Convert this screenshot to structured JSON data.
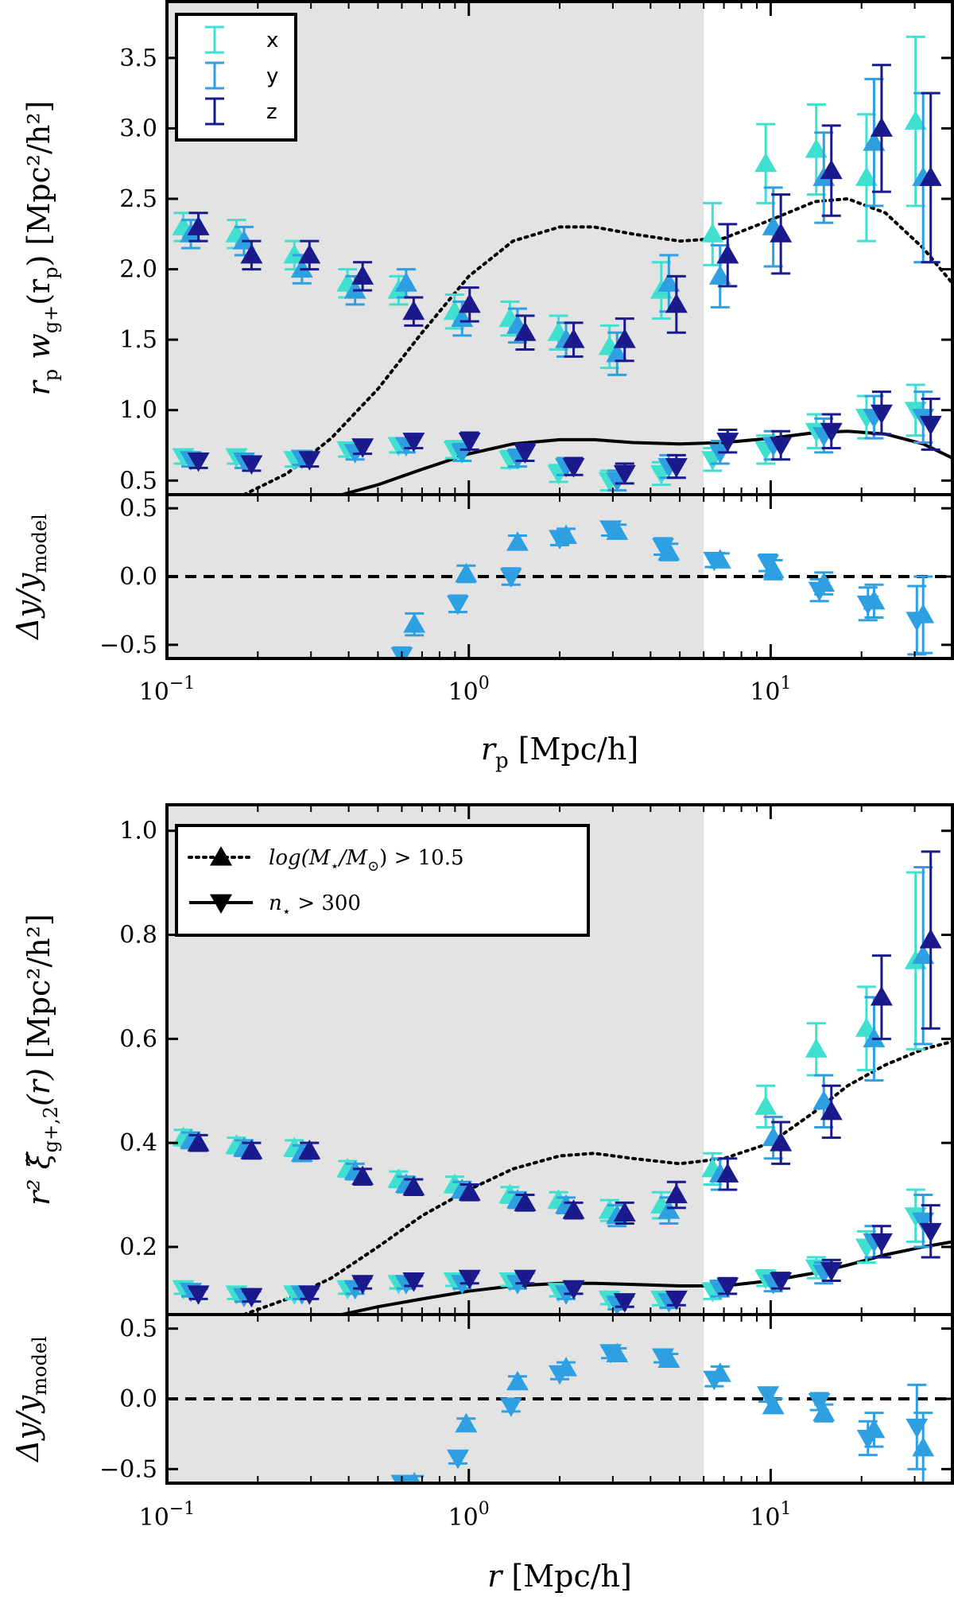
{
  "colors": {
    "x": "#40e0d0",
    "y": "#2e9fe0",
    "z": "#1a1a8c",
    "shade": "#e3e3e3",
    "model": "#000000"
  },
  "chart_data": [
    {
      "id": "top",
      "type": "scatter",
      "xscale": "log",
      "xlim": [
        0.1,
        40
      ],
      "main_ylim": [
        0.4,
        3.9
      ],
      "resid_ylim": [
        -0.6,
        0.6
      ],
      "shaded_xmax": 6,
      "main_yticks": [
        "0.5",
        "1.0",
        "1.5",
        "2.0",
        "2.5",
        "3.0",
        "3.5"
      ],
      "resid_yticks": [
        "−0.5",
        "0.0",
        "0.5"
      ],
      "xticks": [
        {
          "base": "10",
          "exp": "−1"
        },
        {
          "base": "10",
          "exp": "0"
        },
        {
          "base": "10",
          "exp": "1"
        }
      ],
      "xlabel": {
        "main": "r",
        "sub": "p",
        "rest": " [Mpc/h]"
      },
      "ylabel_main": {
        "pre": "r",
        "sub1": "p",
        "mid": " w",
        "sub2": "g+",
        "post": "(r",
        "sub3": "p",
        "end": ") [Mpc²/h²]"
      },
      "ylabel_resid": {
        "pre": "Δy/y",
        "sub": "model"
      },
      "legend": [
        "x",
        "y",
        "z"
      ],
      "x": [
        0.12,
        0.18,
        0.28,
        0.42,
        0.62,
        0.95,
        1.45,
        2.1,
        3.1,
        4.6,
        6.8,
        10.2,
        15.0,
        22.0,
        32.0
      ],
      "series_up": {
        "x": [
          2.3,
          2.25,
          2.1,
          1.9,
          1.85,
          1.7,
          1.65,
          1.55,
          1.45,
          1.85,
          2.25,
          2.75,
          2.85,
          2.65,
          3.05
        ],
        "y": [
          2.25,
          2.2,
          2.0,
          1.85,
          1.9,
          1.65,
          1.6,
          1.5,
          1.4,
          1.9,
          1.95,
          2.3,
          2.65,
          2.9,
          2.65
        ],
        "z": [
          2.3,
          2.1,
          2.1,
          1.95,
          1.7,
          1.75,
          1.55,
          1.5,
          1.5,
          1.75,
          2.1,
          2.25,
          2.7,
          3.0,
          2.65
        ]
      },
      "errors_up": [
        0.1,
        0.1,
        0.1,
        0.1,
        0.1,
        0.12,
        0.12,
        0.12,
        0.15,
        0.2,
        0.22,
        0.28,
        0.32,
        0.45,
        0.6
      ],
      "series_down": {
        "x": [
          0.67,
          0.67,
          0.65,
          0.72,
          0.75,
          0.72,
          0.65,
          0.55,
          0.5,
          0.55,
          0.65,
          0.72,
          0.85,
          0.95,
          1.0
        ],
        "y": [
          0.65,
          0.64,
          0.66,
          0.7,
          0.75,
          0.7,
          0.66,
          0.6,
          0.5,
          0.6,
          0.7,
          0.75,
          0.82,
          0.95,
          0.95
        ],
        "z": [
          0.64,
          0.62,
          0.65,
          0.74,
          0.78,
          0.78,
          0.7,
          0.6,
          0.55,
          0.6,
          0.78,
          0.75,
          0.85,
          0.98,
          0.9
        ]
      },
      "errors_down": [
        0.05,
        0.05,
        0.05,
        0.05,
        0.05,
        0.06,
        0.06,
        0.06,
        0.07,
        0.08,
        0.08,
        0.1,
        0.12,
        0.15,
        0.18
      ],
      "model_dotted": {
        "x": [
          0.18,
          0.25,
          0.35,
          0.5,
          0.7,
          1.0,
          1.4,
          2.0,
          2.6,
          3.5,
          5.0,
          7.0,
          10.0,
          14.0,
          18.0,
          24.0,
          32.0,
          40.0
        ],
        "y": [
          0.4,
          0.55,
          0.8,
          1.15,
          1.55,
          1.95,
          2.2,
          2.3,
          2.3,
          2.25,
          2.2,
          2.22,
          2.35,
          2.48,
          2.5,
          2.4,
          2.15,
          1.9
        ]
      },
      "model_solid": {
        "x": [
          0.38,
          0.5,
          0.7,
          1.0,
          1.4,
          2.0,
          2.6,
          3.5,
          5.0,
          7.0,
          10.0,
          14.0,
          18.0,
          24.0,
          32.0,
          40.0
        ],
        "y": [
          0.4,
          0.47,
          0.58,
          0.69,
          0.76,
          0.79,
          0.79,
          0.77,
          0.76,
          0.77,
          0.8,
          0.84,
          0.85,
          0.83,
          0.76,
          0.66
        ]
      },
      "resid_up": {
        "x": [
          0.66,
          0.98,
          1.45,
          2.1,
          3.1,
          4.6,
          6.8,
          10.2,
          15.0,
          22.0,
          32.0
        ],
        "y": [
          -0.35,
          0.02,
          0.25,
          0.3,
          0.33,
          0.18,
          0.12,
          0.05,
          -0.05,
          -0.18,
          -0.28
        ],
        "err": [
          0.08,
          0.06,
          0.05,
          0.05,
          0.05,
          0.06,
          0.05,
          0.07,
          0.08,
          0.12,
          0.28
        ]
      },
      "resid_down": {
        "x": [
          0.6,
          0.92,
          1.38,
          2.0,
          2.95,
          4.4,
          6.5,
          9.8,
          14.5,
          21.0,
          30.5
        ],
        "y": [
          -0.58,
          -0.2,
          0.0,
          0.28,
          0.35,
          0.22,
          0.12,
          0.1,
          -0.1,
          -0.2,
          -0.32
        ],
        "err": [
          0.06,
          0.06,
          0.06,
          0.05,
          0.05,
          0.06,
          0.05,
          0.06,
          0.08,
          0.12,
          0.25
        ]
      }
    },
    {
      "id": "bottom",
      "type": "scatter",
      "xscale": "log",
      "xlim": [
        0.1,
        40
      ],
      "main_ylim": [
        0.07,
        1.05
      ],
      "resid_ylim": [
        -0.6,
        0.6
      ],
      "shaded_xmax": 6,
      "main_yticks": [
        "0.2",
        "0.4",
        "0.6",
        "0.8",
        "1.0"
      ],
      "resid_yticks": [
        "−0.5",
        "0.0",
        "0.5"
      ],
      "xticks": [
        {
          "base": "10",
          "exp": "−1"
        },
        {
          "base": "10",
          "exp": "0"
        },
        {
          "base": "10",
          "exp": "1"
        }
      ],
      "xlabel": {
        "main": "r",
        "sub": "",
        "rest": " [Mpc/h]"
      },
      "ylabel_main": {
        "pre": "r² ξ̃",
        "sub1": "g+,2",
        "mid": "(r)",
        "sub2": "",
        "post": "",
        "sub3": "",
        "end": " [Mpc²/h²]"
      },
      "ylabel_resid": {
        "pre": "Δy/y",
        "sub": "model"
      },
      "legend_models": [
        {
          "marker": "up",
          "line": "dotted",
          "text_pre": "log(M",
          "text_sub": "⋆",
          "text_mid": "/M",
          "text_sub2": "⊙",
          "text_post": ") > 10.5"
        },
        {
          "marker": "down",
          "line": "solid",
          "text_pre": "n",
          "text_sub": "⋆",
          "text_mid": " > 300",
          "text_sub2": "",
          "text_post": ""
        }
      ],
      "x": [
        0.12,
        0.18,
        0.28,
        0.42,
        0.62,
        0.95,
        1.45,
        2.1,
        3.1,
        4.6,
        6.8,
        10.2,
        15.0,
        22.0,
        32.0
      ],
      "series_up": {
        "x": [
          0.41,
          0.395,
          0.39,
          0.35,
          0.33,
          0.32,
          0.3,
          0.29,
          0.27,
          0.28,
          0.35,
          0.47,
          0.58,
          0.62,
          0.75
        ],
        "y": [
          0.405,
          0.39,
          0.38,
          0.345,
          0.32,
          0.31,
          0.29,
          0.28,
          0.26,
          0.27,
          0.34,
          0.41,
          0.48,
          0.6,
          0.76
        ],
        "z": [
          0.4,
          0.385,
          0.385,
          0.335,
          0.315,
          0.305,
          0.285,
          0.27,
          0.265,
          0.3,
          0.34,
          0.4,
          0.46,
          0.68,
          0.79
        ]
      },
      "errors_up": [
        0.015,
        0.015,
        0.015,
        0.015,
        0.015,
        0.015,
        0.015,
        0.015,
        0.02,
        0.025,
        0.03,
        0.04,
        0.05,
        0.08,
        0.17
      ],
      "series_down": {
        "x": [
          0.12,
          0.11,
          0.11,
          0.12,
          0.13,
          0.135,
          0.135,
          0.115,
          0.1,
          0.1,
          0.115,
          0.14,
          0.16,
          0.2,
          0.26
        ],
        "y": [
          0.115,
          0.105,
          0.11,
          0.12,
          0.13,
          0.13,
          0.13,
          0.11,
          0.09,
          0.095,
          0.12,
          0.13,
          0.15,
          0.21,
          0.25
        ],
        "z": [
          0.11,
          0.105,
          0.11,
          0.13,
          0.135,
          0.14,
          0.14,
          0.12,
          0.095,
          0.1,
          0.125,
          0.135,
          0.155,
          0.21,
          0.23
        ]
      },
      "errors_down": [
        0.01,
        0.01,
        0.01,
        0.01,
        0.01,
        0.01,
        0.01,
        0.01,
        0.01,
        0.012,
        0.015,
        0.015,
        0.02,
        0.03,
        0.05
      ],
      "model_dotted": {
        "x": [
          0.18,
          0.25,
          0.35,
          0.5,
          0.7,
          1.0,
          1.4,
          2.0,
          2.6,
          3.5,
          5.0,
          7.0,
          10.0,
          14.0,
          18.0,
          24.0,
          32.0,
          40.0
        ],
        "y": [
          0.07,
          0.1,
          0.14,
          0.2,
          0.26,
          0.31,
          0.35,
          0.375,
          0.38,
          0.37,
          0.36,
          0.37,
          0.4,
          0.46,
          0.51,
          0.55,
          0.58,
          0.595
        ]
      },
      "model_solid": {
        "x": [
          0.38,
          0.5,
          0.7,
          1.0,
          1.4,
          2.0,
          2.6,
          3.5,
          5.0,
          7.0,
          10.0,
          14.0,
          18.0,
          24.0,
          32.0,
          40.0
        ],
        "y": [
          0.07,
          0.085,
          0.1,
          0.115,
          0.125,
          0.13,
          0.13,
          0.128,
          0.125,
          0.125,
          0.135,
          0.15,
          0.165,
          0.185,
          0.2,
          0.21
        ]
      },
      "resid_up": {
        "x": [
          0.66,
          0.98,
          1.45,
          2.1,
          3.1,
          4.6,
          6.8,
          10.2,
          15.0,
          22.0,
          32.0
        ],
        "y": [
          -0.6,
          -0.18,
          0.12,
          0.22,
          0.32,
          0.28,
          0.18,
          -0.05,
          -0.1,
          -0.22,
          -0.35
        ],
        "err": [
          0.05,
          0.04,
          0.04,
          0.04,
          0.04,
          0.04,
          0.05,
          0.05,
          0.06,
          0.12,
          0.25
        ]
      },
      "resid_down": {
        "x": [
          0.6,
          0.92,
          1.38,
          2.0,
          2.95,
          4.4,
          6.5,
          9.8,
          14.5,
          21.0,
          30.5
        ],
        "y": [
          -0.6,
          -0.42,
          -0.05,
          0.18,
          0.33,
          0.3,
          0.14,
          0.03,
          -0.02,
          -0.28,
          -0.2
        ],
        "err": [
          0.04,
          0.04,
          0.04,
          0.04,
          0.04,
          0.04,
          0.05,
          0.05,
          0.06,
          0.12,
          0.3
        ]
      }
    }
  ]
}
